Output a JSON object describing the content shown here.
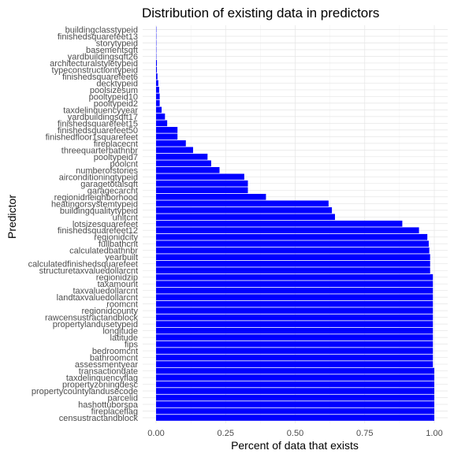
{
  "chart_data": {
    "type": "bar",
    "orientation": "horizontal",
    "title": "Distribution of existing data in predictors",
    "xlabel": "Percent of data that exists",
    "ylabel": "Predictor",
    "xlim": [
      0,
      1
    ],
    "x_ticks": [
      "0.00",
      "0.25",
      "0.50",
      "0.75",
      "1.00"
    ],
    "bar_color": "#0000ff",
    "grid": true,
    "categories": [
      "buildingclasstypeid",
      "finishedsquarefeet13",
      "storytypeid",
      "basementsqft",
      "yardbuildingsqft26",
      "architecturalstyletypeid",
      "typeconstructiontypeid",
      "finishedsquarefeet6",
      "decktypeid",
      "poolsizesum",
      "pooltypeid10",
      "pooltypeid2",
      "taxdelinquencyyear",
      "yardbuildingsqft17",
      "finishedsquarefeet15",
      "finishedsquarefeet50",
      "finishedfloor1squarefeet",
      "fireplacecnt",
      "threequarterbathnbr",
      "pooltypeid7",
      "poolcnt",
      "numberofstories",
      "airconditioningtypeid",
      "garagetotalsqft",
      "garagecarcnt",
      "regionidneighborhood",
      "heatingorsystemtypeid",
      "buildingqualitytypeid",
      "unitcnt",
      "lotsizesquarefeet",
      "finishedsquarefeet12",
      "regionidcity",
      "fullbathcnt",
      "calculatedbathnbr",
      "yearbuilt",
      "calculatedfinishedsquarefeet",
      "structuretaxvaluedollarcnt",
      "regionidzip",
      "taxamount",
      "taxvaluedollarcnt",
      "landtaxvaluedollarcnt",
      "roomcnt",
      "regionidcounty",
      "rawcensustractandblock",
      "propertylandusetypeid",
      "longitude",
      "latitude",
      "fips",
      "bedroomcnt",
      "bathroomcnt",
      "assessmentyear",
      "transactiondate",
      "taxdelinquencyflag",
      "propertyzoningdesc",
      "propertycountylandusecode",
      "parcelid",
      "hashottuborspa",
      "fireplaceflag",
      "censustractandblock"
    ],
    "values": [
      0.0002,
      0.0004,
      0.0006,
      0.0009,
      0.001,
      0.003,
      0.003,
      0.005,
      0.008,
      0.011,
      0.013,
      0.013,
      0.02,
      0.032,
      0.04,
      0.077,
      0.077,
      0.107,
      0.133,
      0.185,
      0.198,
      0.228,
      0.317,
      0.33,
      0.33,
      0.395,
      0.62,
      0.632,
      0.643,
      0.885,
      0.945,
      0.975,
      0.98,
      0.982,
      0.985,
      0.985,
      0.985,
      0.995,
      0.995,
      0.995,
      0.995,
      0.995,
      0.995,
      0.995,
      0.995,
      0.995,
      0.995,
      0.995,
      0.995,
      0.995,
      0.995,
      1.0,
      1.0,
      1.0,
      1.0,
      1.0,
      1.0,
      1.0,
      1.0
    ]
  }
}
